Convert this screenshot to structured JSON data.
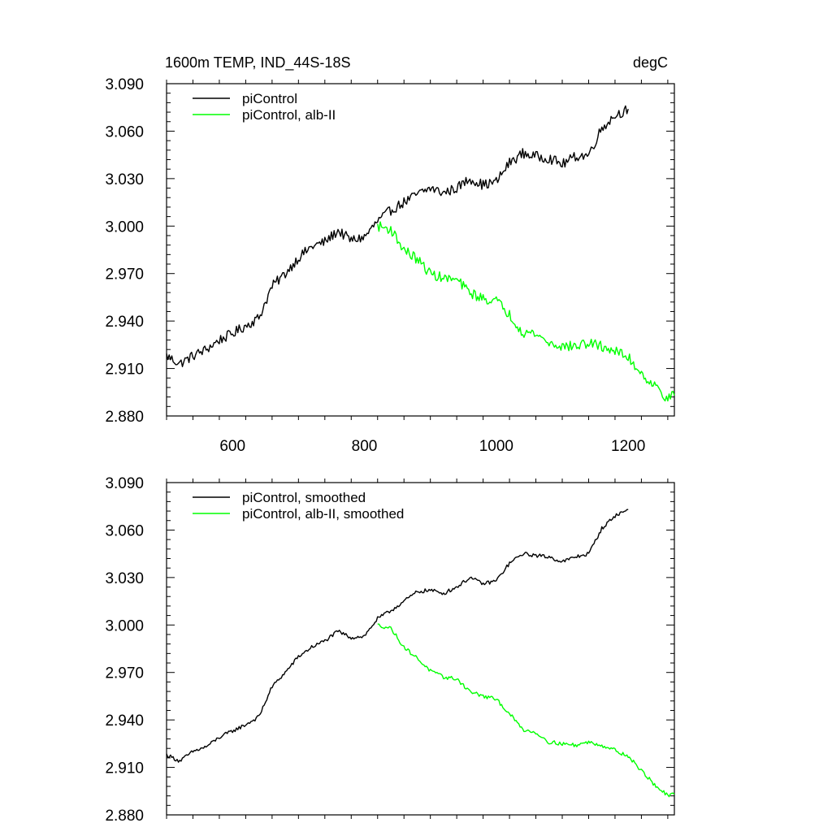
{
  "chart_data": [
    {
      "type": "line",
      "title": "1600m TEMP, IND_44S-18S",
      "units": "degC",
      "xlabel": "",
      "ylabel": "",
      "xlim": [
        500,
        1270
      ],
      "ylim": [
        2.88,
        3.09
      ],
      "x_ticks": [
        600,
        800,
        1000,
        1200
      ],
      "x_tick_labels": [
        "600",
        "800",
        "1000",
        "1200"
      ],
      "y_ticks": [
        2.88,
        2.91,
        2.94,
        2.97,
        3.0,
        3.03,
        3.06,
        3.09
      ],
      "y_tick_labels": [
        "2.880",
        "2.910",
        "2.940",
        "2.970",
        "3.000",
        "3.030",
        "3.060",
        "3.090"
      ],
      "legend_position": "top-left",
      "series": [
        {
          "name": "piControl",
          "color": "#000000",
          "x": [
            500,
            520,
            540,
            560,
            580,
            600,
            620,
            640,
            660,
            680,
            700,
            720,
            740,
            760,
            780,
            800,
            820,
            840,
            860,
            880,
            900,
            920,
            940,
            960,
            980,
            1000,
            1020,
            1040,
            1060,
            1080,
            1100,
            1120,
            1140,
            1160,
            1180,
            1200
          ],
          "values": [
            2.918,
            2.913,
            2.918,
            2.922,
            2.928,
            2.932,
            2.937,
            2.942,
            2.962,
            2.97,
            2.98,
            2.987,
            2.99,
            2.997,
            2.991,
            2.993,
            3.003,
            3.01,
            3.015,
            3.02,
            3.024,
            3.021,
            3.024,
            3.03,
            3.026,
            3.028,
            3.04,
            3.046,
            3.044,
            3.043,
            3.039,
            3.044,
            3.045,
            3.062,
            3.07,
            3.074
          ]
        },
        {
          "name": "piControl, alb-II",
          "color": "#00ff00",
          "x": [
            820,
            840,
            860,
            880,
            900,
            920,
            940,
            960,
            980,
            1000,
            1020,
            1040,
            1060,
            1080,
            1100,
            1120,
            1140,
            1160,
            1180,
            1200,
            1220,
            1240,
            1260,
            1270
          ],
          "values": [
            3.0,
            2.998,
            2.985,
            2.979,
            2.97,
            2.967,
            2.966,
            2.958,
            2.954,
            2.953,
            2.944,
            2.933,
            2.932,
            2.926,
            2.924,
            2.924,
            2.926,
            2.924,
            2.921,
            2.917,
            2.907,
            2.899,
            2.891,
            2.893
          ]
        }
      ]
    },
    {
      "type": "line",
      "title": "",
      "xlabel": "",
      "ylabel": "",
      "xlim": [
        500,
        1270
      ],
      "ylim": [
        2.88,
        3.09
      ],
      "x_ticks": [
        600,
        800,
        1000,
        1200
      ],
      "x_tick_labels": [],
      "y_ticks": [
        2.88,
        2.91,
        2.94,
        2.97,
        3.0,
        3.03,
        3.06,
        3.09
      ],
      "y_tick_labels": [
        "2.880",
        "2.910",
        "2.940",
        "2.970",
        "3.000",
        "3.030",
        "3.060",
        "3.090"
      ],
      "legend_position": "top-left",
      "series": [
        {
          "name": "piControl, smoothed",
          "color": "#000000",
          "x": [
            500,
            520,
            540,
            560,
            580,
            600,
            620,
            640,
            660,
            680,
            700,
            720,
            740,
            760,
            780,
            800,
            820,
            840,
            860,
            880,
            900,
            920,
            940,
            960,
            980,
            1000,
            1020,
            1040,
            1060,
            1080,
            1100,
            1120,
            1140,
            1160,
            1180,
            1200
          ],
          "values": [
            2.918,
            2.914,
            2.92,
            2.923,
            2.929,
            2.933,
            2.937,
            2.942,
            2.961,
            2.97,
            2.98,
            2.986,
            2.99,
            2.996,
            2.992,
            2.993,
            3.004,
            3.009,
            3.015,
            3.021,
            3.022,
            3.02,
            3.024,
            3.03,
            3.026,
            3.028,
            3.039,
            3.045,
            3.044,
            3.043,
            3.04,
            3.043,
            3.045,
            3.061,
            3.069,
            3.073
          ]
        },
        {
          "name": "piControl, alb-II, smoothed",
          "color": "#00ff00",
          "x": [
            820,
            840,
            860,
            880,
            900,
            920,
            940,
            960,
            980,
            1000,
            1020,
            1040,
            1060,
            1080,
            1100,
            1120,
            1140,
            1160,
            1180,
            1200,
            1220,
            1240,
            1260,
            1270
          ],
          "values": [
            3.0,
            2.998,
            2.986,
            2.979,
            2.971,
            2.967,
            2.966,
            2.958,
            2.955,
            2.953,
            2.944,
            2.934,
            2.932,
            2.926,
            2.925,
            2.924,
            2.926,
            2.924,
            2.921,
            2.917,
            2.908,
            2.899,
            2.892,
            2.893
          ]
        }
      ]
    }
  ]
}
